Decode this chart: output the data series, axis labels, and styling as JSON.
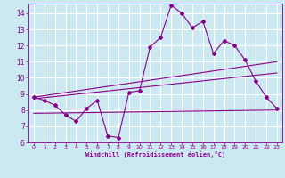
{
  "xlabel": "Windchill (Refroidissement éolien,°C)",
  "background_color": "#cce8f0",
  "grid_color": "#ffffff",
  "line_color": "#880088",
  "xlim": [
    -0.5,
    23.5
  ],
  "ylim": [
    6,
    14.6
  ],
  "xticks": [
    0,
    1,
    2,
    3,
    4,
    5,
    6,
    7,
    8,
    9,
    10,
    11,
    12,
    13,
    14,
    15,
    16,
    17,
    18,
    19,
    20,
    21,
    22,
    23
  ],
  "yticks": [
    6,
    7,
    8,
    9,
    10,
    11,
    12,
    13,
    14
  ],
  "series1_x": [
    0,
    1,
    2,
    3,
    4,
    5,
    6,
    7,
    8,
    9,
    10,
    11,
    12,
    13,
    14,
    15,
    16,
    17,
    18,
    19,
    20,
    21,
    22,
    23
  ],
  "series1_y": [
    8.8,
    8.6,
    8.3,
    7.7,
    7.3,
    8.1,
    8.6,
    6.4,
    6.3,
    9.1,
    9.2,
    11.9,
    12.5,
    14.5,
    14.0,
    13.1,
    13.5,
    11.5,
    12.3,
    12.0,
    11.1,
    9.8,
    8.8,
    8.1
  ],
  "series2_x": [
    0,
    23
  ],
  "series2_y": [
    8.8,
    11.0
  ],
  "series3_x": [
    0,
    23
  ],
  "series3_y": [
    8.7,
    10.3
  ],
  "series4_x": [
    0,
    23
  ],
  "series4_y": [
    7.8,
    8.0
  ]
}
